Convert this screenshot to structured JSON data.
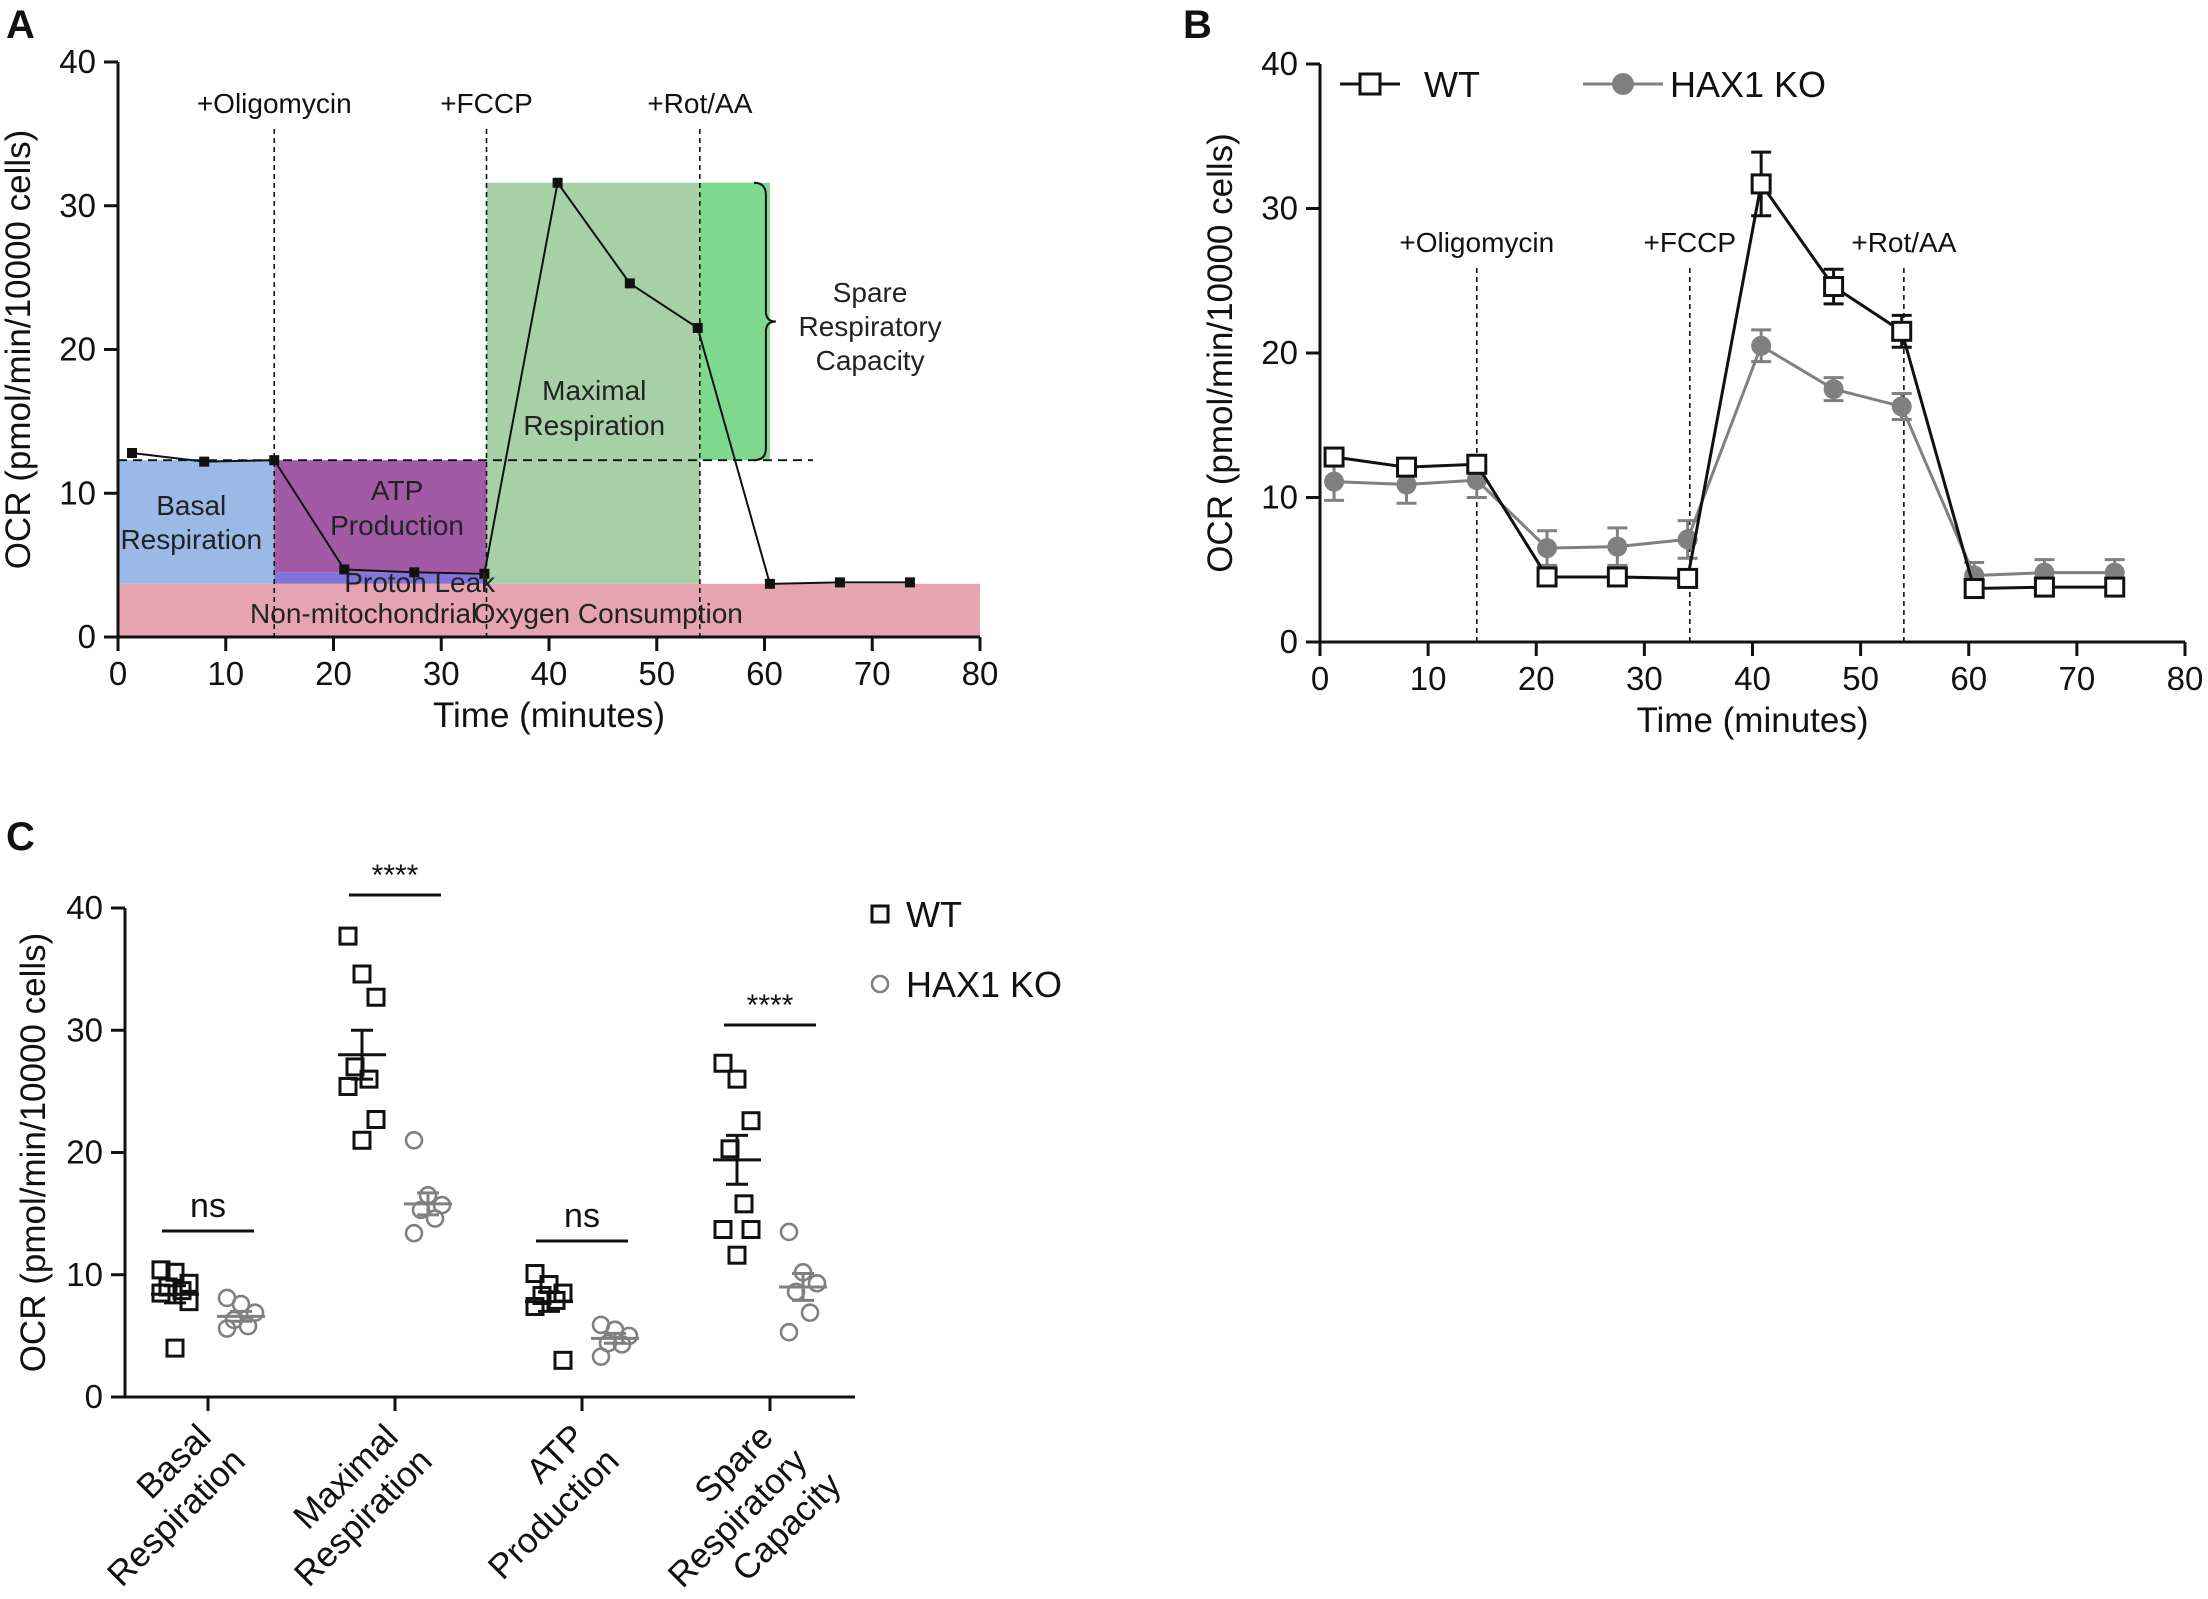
{
  "chart_data": [
    {
      "panel": "A",
      "type": "line",
      "xlabel": "Time (minutes)",
      "ylabel": "OCR (pmol/min/10000 cells)",
      "xlim": [
        0,
        80
      ],
      "ylim": [
        0,
        40
      ],
      "xticks": [
        0,
        10,
        20,
        30,
        40,
        50,
        60,
        70,
        80
      ],
      "yticks": [
        0,
        10,
        20,
        30,
        40
      ],
      "series": [
        {
          "name": "OCR",
          "x": [
            1.3,
            8,
            14.5,
            21,
            27.5,
            34,
            40.8,
            47.5,
            53.8,
            60.5,
            67,
            73.5
          ],
          "values": [
            12.8,
            12.2,
            12.3,
            4.7,
            4.5,
            4.4,
            31.6,
            24.6,
            21.5,
            3.7,
            3.8,
            3.8
          ]
        }
      ],
      "injections": [
        {
          "label": "+Oligomycin",
          "x": 14.5
        },
        {
          "label": "+FCCP",
          "x": 34.2
        },
        {
          "label": "+Rot/AA",
          "x": 54
        }
      ],
      "regions": [
        {
          "label": "Basal Respiration",
          "line1": "Basal",
          "line2": "Respiration",
          "x": [
            0,
            14.5
          ],
          "y": [
            3.7,
            12.3
          ],
          "color": "#9ab9e6"
        },
        {
          "label": "ATP Production",
          "line1": "ATP",
          "line2": "Production",
          "x": [
            14.5,
            34.2
          ],
          "y": [
            4.5,
            12.3
          ],
          "color": "#a25aa6"
        },
        {
          "label": "Proton Leak",
          "x": [
            14.5,
            34.2
          ],
          "y": [
            3.7,
            4.5
          ],
          "color": "#7f74d9"
        },
        {
          "label": "Maximal Respiration",
          "line1": "Maximal",
          "line2": "Respiration",
          "x": [
            34.2,
            54
          ],
          "y": [
            3.7,
            31.6
          ],
          "color": "#a8d0a6"
        },
        {
          "label": "Spare Respiratory Capacity",
          "line1": "Spare",
          "line2": "Respiratory",
          "line3": "Capacity",
          "x": [
            54,
            60.5
          ],
          "y": [
            12.3,
            31.6
          ],
          "color": "#7ed88d"
        },
        {
          "label": "Non-mitochondrial Oxygen Consumption",
          "x": [
            0,
            80
          ],
          "y": [
            0,
            3.7
          ],
          "color": "#e6a3b1"
        }
      ],
      "basal_reference": 12.3
    },
    {
      "panel": "B",
      "type": "line",
      "xlabel": "Time (minutes)",
      "ylabel": "OCR (pmol/min/10000 cells)",
      "xlim": [
        0,
        80
      ],
      "ylim": [
        0,
        40
      ],
      "xticks": [
        0,
        10,
        20,
        30,
        40,
        50,
        60,
        70,
        80
      ],
      "yticks": [
        0,
        10,
        20,
        30,
        40
      ],
      "injections": [
        {
          "label": "+Oligomycin",
          "x": 14.5
        },
        {
          "label": "+FCCP",
          "x": 34.2
        },
        {
          "label": "+Rot/AA",
          "x": 54
        }
      ],
      "series": [
        {
          "name": "WT",
          "color": "#111111",
          "marker": "open-square",
          "x": [
            1.3,
            8,
            14.5,
            21,
            27.5,
            34,
            40.8,
            47.5,
            53.8,
            60.5,
            67,
            73.5
          ],
          "values": [
            12.8,
            12.1,
            12.3,
            4.5,
            4.5,
            4.4,
            31.7,
            24.6,
            21.5,
            3.7,
            3.8,
            3.8
          ],
          "errors": [
            0.4,
            0.5,
            0.6,
            0.4,
            0.4,
            0.4,
            2.2,
            1.2,
            1.1,
            0.3,
            0.3,
            0.3
          ]
        },
        {
          "name": "HAX1 KO",
          "color": "#808080",
          "marker": "filled-circle",
          "x": [
            1.3,
            8,
            14.5,
            21,
            27.5,
            34,
            40.8,
            47.5,
            53.8,
            60.5,
            67,
            73.5
          ],
          "values": [
            11.1,
            10.9,
            11.2,
            6.5,
            6.6,
            7.1,
            20.5,
            17.5,
            16.3,
            4.6,
            4.8,
            4.8
          ],
          "errors": [
            1.3,
            1.3,
            1.2,
            1.2,
            1.3,
            1.3,
            1.1,
            0.8,
            0.9,
            0.9,
            0.9,
            0.9
          ]
        }
      ]
    },
    {
      "panel": "C",
      "type": "scatter",
      "ylabel": "OCR (pmol/min/10000 cells)",
      "ylim": [
        0,
        40
      ],
      "yticks": [
        0,
        10,
        20,
        30,
        40
      ],
      "categories": [
        {
          "name": "Basal Respiration",
          "line1": "Basal",
          "line2": "Respiration"
        },
        {
          "name": "Maximal Respiration",
          "line1": "Maximal",
          "line2": "Respiration"
        },
        {
          "name": "ATP Production",
          "line1": "ATP",
          "line2": "Production"
        },
        {
          "name": "Spare Respiratory Capacity",
          "line1": "Spare",
          "line2": "Respiratory",
          "line3": "Capacity"
        }
      ],
      "significance": [
        "ns",
        "****",
        "ns",
        "****"
      ],
      "series": [
        {
          "name": "WT",
          "color": "#111111",
          "marker": "open-square",
          "groups": [
            {
              "points": [
                10.4,
                10.2,
                9.3,
                9.0,
                8.7,
                8.5,
                7.8,
                4.0
              ],
              "mean": 8.4,
              "sem": 0.7
            },
            {
              "points": [
                37.7,
                34.6,
                32.7,
                27.0,
                26.0,
                25.4,
                22.7,
                21.0
              ],
              "mean": 28.0,
              "sem": 2.0
            },
            {
              "points": [
                10.1,
                9.2,
                8.5,
                8.3,
                7.9,
                7.4,
                3.0
              ],
              "mean": 7.8,
              "sem": 0.8
            },
            {
              "points": [
                27.3,
                26.0,
                22.6,
                20.3,
                15.8,
                13.7,
                13.7,
                11.6
              ],
              "mean": 19.4,
              "sem": 2.0
            }
          ]
        },
        {
          "name": "HAX1 KO",
          "color": "#808080",
          "marker": "open-circle",
          "groups": [
            {
              "points": [
                8.1,
                7.6,
                6.9,
                6.3,
                5.8,
                5.6
              ],
              "mean": 6.6,
              "sem": 0.4
            },
            {
              "points": [
                21.0,
                16.5,
                15.7,
                15.3,
                14.6,
                13.4
              ],
              "mean": 15.8,
              "sem": 0.9
            },
            {
              "points": [
                5.9,
                5.5,
                5.0,
                4.4,
                4.3,
                3.3
              ],
              "mean": 4.8,
              "sem": 0.4
            },
            {
              "points": [
                13.5,
                10.2,
                9.3,
                8.6,
                6.9,
                5.3
              ],
              "mean": 9.0,
              "sem": 1.1
            }
          ]
        }
      ]
    }
  ],
  "labels": {
    "panel_a": "A",
    "panel_b": "B",
    "panel_c": "C",
    "region_a_nonmito_1": "Non-mitochondrial",
    "region_a_nonmito_2": "Oxygen Consumption",
    "region_a_proton": "Proton Leak",
    "legend_wt": "WT",
    "legend_ko": "HAX1 KO"
  }
}
